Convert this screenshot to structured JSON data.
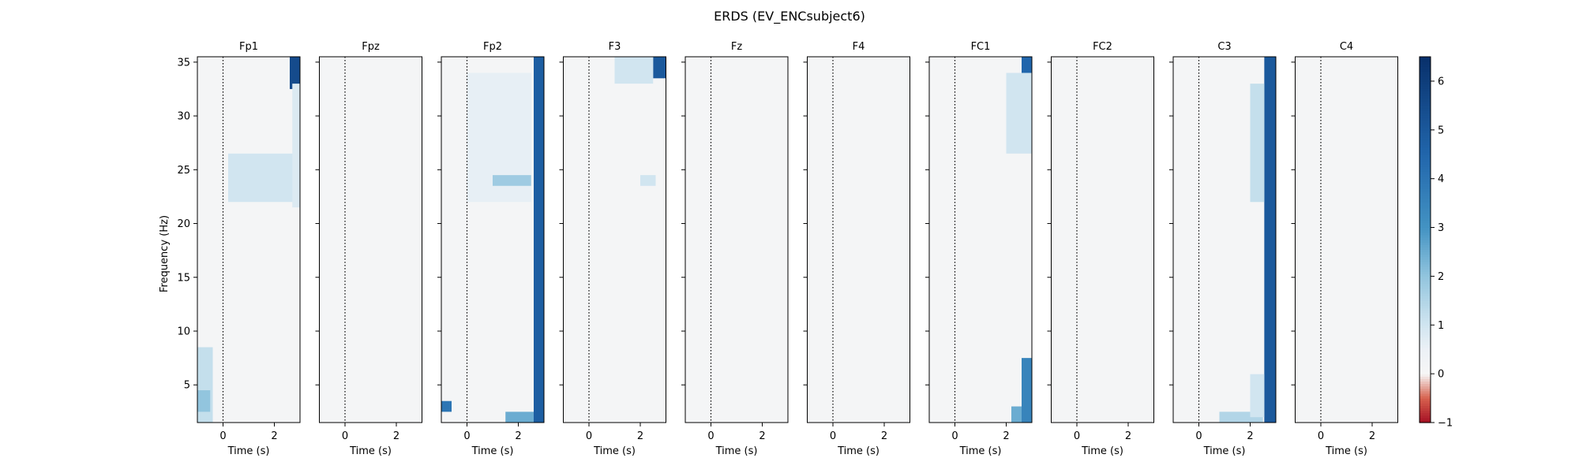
{
  "figure": {
    "title": "ERDS (EV_ENCsubject6)"
  },
  "chart_data": {
    "type": "heatmap",
    "title": "ERDS (EV_ENCsubject6)",
    "ylabel": "Frequency (Hz)",
    "xlabel": "Time (s)",
    "xlim": [
      -1.0,
      3.0
    ],
    "ylim": [
      1.5,
      35.5
    ],
    "x_ticks": [
      0,
      2
    ],
    "y_ticks": [
      5,
      10,
      15,
      20,
      25,
      30,
      35
    ],
    "event_marker_time": 0,
    "channels": [
      "Fp1",
      "Fpz",
      "Fp2",
      "F3",
      "Fz",
      "F4",
      "FC1",
      "FC2",
      "C3",
      "C4"
    ],
    "colorbar": {
      "min": -1,
      "max": 6.5,
      "ticks": [
        -1,
        0,
        1,
        2,
        3,
        4,
        5,
        6
      ],
      "colormap": "RdBu",
      "colors": {
        "negative": "#a50f23",
        "zero": "#f6f6f6",
        "positive": "#08306b"
      }
    },
    "observed_patches": {
      "Fp1": [
        {
          "t": [
            2.6,
            3.0
          ],
          "f": [
            32.5,
            35.5
          ],
          "v": 5.5
        },
        {
          "t": [
            0.2,
            2.8
          ],
          "f": [
            22.0,
            26.5
          ],
          "v": 1.0
        },
        {
          "t": [
            2.7,
            3.0
          ],
          "f": [
            21.5,
            33.0
          ],
          "v": 0.8
        },
        {
          "t": [
            -1.0,
            -0.4
          ],
          "f": [
            1.5,
            8.5
          ],
          "v": 1.2
        },
        {
          "t": [
            -1.0,
            -0.5
          ],
          "f": [
            2.5,
            4.5
          ],
          "v": 2.0
        }
      ],
      "Fpz": [],
      "Fp2": [
        {
          "t": [
            2.6,
            3.0
          ],
          "f": [
            1.5,
            35.5
          ],
          "v": 4.8
        },
        {
          "t": [
            1.5,
            2.6
          ],
          "f": [
            1.5,
            2.5
          ],
          "v": 2.5
        },
        {
          "t": [
            -1.0,
            -0.6
          ],
          "f": [
            2.5,
            3.5
          ],
          "v": 4.0
        },
        {
          "t": [
            0.0,
            2.5
          ],
          "f": [
            22.0,
            34.0
          ],
          "v": 0.6
        },
        {
          "t": [
            1.0,
            2.5
          ],
          "f": [
            23.5,
            24.5
          ],
          "v": 1.8
        }
      ],
      "F3": [
        {
          "t": [
            2.5,
            3.0
          ],
          "f": [
            33.5,
            35.5
          ],
          "v": 5.0
        },
        {
          "t": [
            1.0,
            2.5
          ],
          "f": [
            33.0,
            35.5
          ],
          "v": 1.0
        },
        {
          "t": [
            2.0,
            2.6
          ],
          "f": [
            23.5,
            24.5
          ],
          "v": 1.0
        }
      ],
      "Fz": [],
      "F4": [],
      "FC1": [
        {
          "t": [
            2.6,
            3.0
          ],
          "f": [
            33.5,
            35.5
          ],
          "v": 4.5
        },
        {
          "t": [
            2.0,
            3.0
          ],
          "f": [
            26.5,
            34.0
          ],
          "v": 1.0
        },
        {
          "t": [
            2.6,
            3.0
          ],
          "f": [
            1.5,
            7.5
          ],
          "v": 3.5
        },
        {
          "t": [
            2.2,
            2.6
          ],
          "f": [
            1.5,
            3.0
          ],
          "v": 2.5
        }
      ],
      "FC2": [],
      "C3": [
        {
          "t": [
            2.55,
            3.0
          ],
          "f": [
            1.5,
            35.5
          ],
          "v": 5.0
        },
        {
          "t": [
            0.8,
            2.5
          ],
          "f": [
            1.5,
            2.5
          ],
          "v": 1.5
        },
        {
          "t": [
            2.0,
            2.55
          ],
          "f": [
            2.0,
            6.0
          ],
          "v": 1.0
        },
        {
          "t": [
            2.0,
            2.55
          ],
          "f": [
            22.0,
            33.0
          ],
          "v": 1.2
        }
      ],
      "C4": []
    }
  }
}
